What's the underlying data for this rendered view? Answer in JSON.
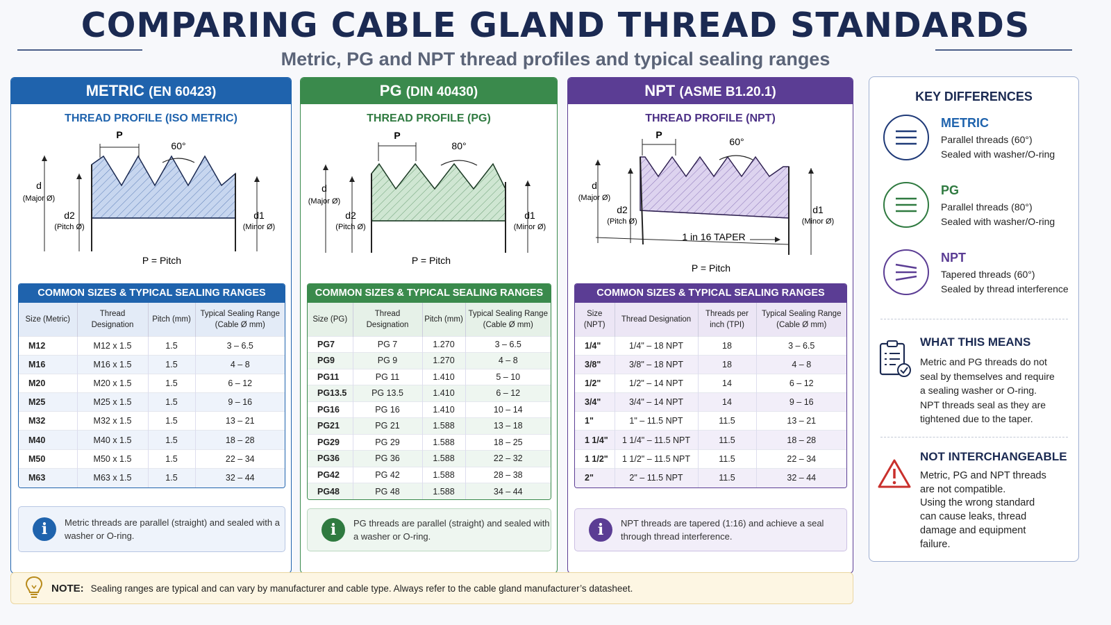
{
  "header": {
    "title": "COMPARING CABLE GLAND THREAD STANDARDS",
    "subtitle": "Metric, PG and NPT thread profiles and typical sealing ranges"
  },
  "metric": {
    "name": "METRIC",
    "std": "(EN 60423)",
    "profile_title": "THREAD PROFILE (ISO METRIC)",
    "table_title": "COMMON SIZES & TYPICAL SEALING RANGES",
    "headers": [
      "Size (Metric)",
      "Thread Designation",
      "Pitch (mm)",
      "Typical Sealing Range (Cable Ø mm)"
    ],
    "rows": [
      [
        "M12",
        "M12 x 1.5",
        "1.5",
        "3 – 6.5"
      ],
      [
        "M16",
        "M16 x 1.5",
        "1.5",
        "4 – 8"
      ],
      [
        "M20",
        "M20 x 1.5",
        "1.5",
        "6 – 12"
      ],
      [
        "M25",
        "M25 x 1.5",
        "1.5",
        "9 – 16"
      ],
      [
        "M32",
        "M32 x 1.5",
        "1.5",
        "13 – 21"
      ],
      [
        "M40",
        "M40 x 1.5",
        "1.5",
        "18 – 28"
      ],
      [
        "M50",
        "M50 x 1.5",
        "1.5",
        "22 – 34"
      ],
      [
        "M63",
        "M63 x 1.5",
        "1.5",
        "32 – 44"
      ]
    ],
    "note": "Metric threads are parallel (straight) and sealed with a washer or O-ring.",
    "angle": "60°"
  },
  "pg": {
    "name": "PG",
    "std": "(DIN 40430)",
    "profile_title": "THREAD PROFILE (PG)",
    "table_title": "COMMON SIZES & TYPICAL SEALING RANGES",
    "headers": [
      "Size (PG)",
      "Thread Designation",
      "Pitch (mm)",
      "Typical Sealing Range (Cable Ø mm)"
    ],
    "rows": [
      [
        "PG7",
        "PG 7",
        "1.270",
        "3 – 6.5"
      ],
      [
        "PG9",
        "PG 9",
        "1.270",
        "4 – 8"
      ],
      [
        "PG11",
        "PG 11",
        "1.410",
        "5 – 10"
      ],
      [
        "PG13.5",
        "PG 13.5",
        "1.410",
        "6 – 12"
      ],
      [
        "PG16",
        "PG 16",
        "1.410",
        "10 – 14"
      ],
      [
        "PG21",
        "PG 21",
        "1.588",
        "13 – 18"
      ],
      [
        "PG29",
        "PG 29",
        "1.588",
        "18 – 25"
      ],
      [
        "PG36",
        "PG 36",
        "1.588",
        "22 – 32"
      ],
      [
        "PG42",
        "PG 42",
        "1.588",
        "28 – 38"
      ],
      [
        "PG48",
        "PG 48",
        "1.588",
        "34 – 44"
      ]
    ],
    "note": "PG threads are parallel (straight) and sealed with a washer or O-ring.",
    "angle": "80°"
  },
  "npt": {
    "name": "NPT",
    "std": "(ASME B1.20.1)",
    "profile_title": "THREAD PROFILE (NPT)",
    "table_title": "COMMON SIZES & TYPICAL SEALING RANGES",
    "headers": [
      "Size (NPT)",
      "Thread Designation",
      "Threads per inch (TPI)",
      "Typical Sealing Range (Cable Ø mm)"
    ],
    "rows": [
      [
        "1/4\"",
        "1/4\" – 18 NPT",
        "18",
        "3 – 6.5"
      ],
      [
        "3/8\"",
        "3/8\" – 18 NPT",
        "18",
        "4 – 8"
      ],
      [
        "1/2\"",
        "1/2\" – 14 NPT",
        "14",
        "6 – 12"
      ],
      [
        "3/4\"",
        "3/4\" – 14 NPT",
        "14",
        "9 – 16"
      ],
      [
        "1\"",
        "1\" – 11.5 NPT",
        "11.5",
        "13 – 21"
      ],
      [
        "1 1/4\"",
        "1 1/4\" – 11.5 NPT",
        "11.5",
        "18 – 28"
      ],
      [
        "1 1/2\"",
        "1 1/2\" – 11.5 NPT",
        "11.5",
        "22 – 34"
      ],
      [
        "2\"",
        "2\" – 11.5 NPT",
        "11.5",
        "32 – 44"
      ]
    ],
    "note": "NPT threads are tapered (1:16) and achieve a seal through thread interference.",
    "angle": "60°",
    "taper": "1 in 16 TAPER"
  },
  "labels": {
    "p": "P",
    "d": "d",
    "major": "(Major Ø)",
    "d2": "d2",
    "pitchd": "(Pitch Ø)",
    "d1": "d1",
    "minor": "(Minor Ø)",
    "pitch": "P = Pitch"
  },
  "key": {
    "title": "KEY DIFFERENCES",
    "items": [
      {
        "name": "METRIC",
        "l1": "Parallel threads (60°)",
        "l2": "Sealed with washer/O-ring"
      },
      {
        "name": "PG",
        "l1": "Parallel threads (80°)",
        "l2": "Sealed with washer/O-ring"
      },
      {
        "name": "NPT",
        "l1": "Tapered threads (60°)",
        "l2": "Sealed by thread interference"
      }
    ],
    "means_title": "WHAT THIS MEANS",
    "means": [
      "Metric and PG threads do not",
      "seal by themselves and require",
      "a sealing washer or O-ring.",
      "NPT threads seal as they are",
      "tightened due to the taper."
    ],
    "ni_title": "NOT INTERCHANGEABLE",
    "ni": [
      "Metric, PG and NPT threads",
      "are not compatible.",
      "Using the wrong standard",
      "can cause leaks, thread",
      "damage and equipment",
      "failure."
    ]
  },
  "bottom": {
    "label": "NOTE:",
    "text": "Sealing ranges are typical and can vary by manufacturer and cable type. Always refer to the cable gland manufacturer’s datasheet."
  },
  "colors": {
    "metric": "#1f63ad",
    "pg": "#3a8a4c",
    "npt": "#5b3d94"
  }
}
